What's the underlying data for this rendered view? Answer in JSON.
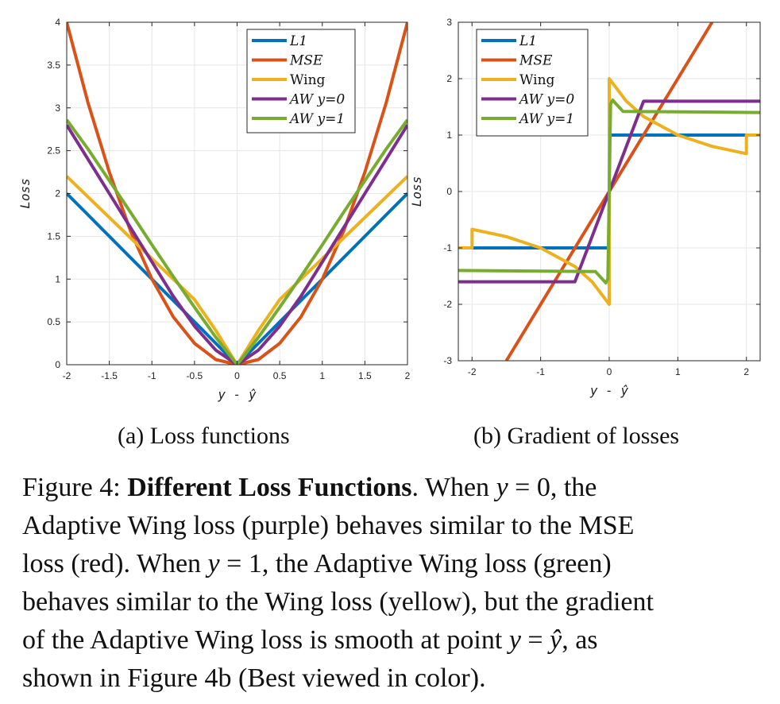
{
  "colors": {
    "L1": "#0072BD",
    "MSE": "#D95319",
    "Wing": "#EDB120",
    "AW0": "#7E2F8E",
    "AW1": "#77AC30",
    "grid": "#e6e6e6",
    "axis": "#262626"
  },
  "chart_data": [
    {
      "type": "line",
      "subtitle": "(a) Loss functions",
      "xlabel": "y - ŷ",
      "ylabel": "Loss",
      "xlim": [
        -2,
        2
      ],
      "ylim": [
        0,
        4
      ],
      "xticks": [
        -2,
        -1.5,
        -1,
        -0.5,
        0,
        0.5,
        1,
        1.5,
        2
      ],
      "xtick_labels": [
        "-2",
        "-1.5",
        "-1",
        "-0.5",
        "0",
        "0.5",
        "1",
        "1.5",
        "2"
      ],
      "yticks": [
        0,
        0.5,
        1,
        1.5,
        2,
        2.5,
        3,
        3.5,
        4
      ],
      "ytick_labels": [
        "0",
        "0.5",
        "1",
        "1.5",
        "2",
        "2.5",
        "3",
        "3.5",
        "4"
      ],
      "grid": true,
      "legend_position": "top-right",
      "x": [
        -2,
        -1.75,
        -1.5,
        -1.25,
        -1,
        -0.75,
        -0.5,
        -0.25,
        0,
        0.25,
        0.5,
        0.75,
        1,
        1.25,
        1.5,
        1.75,
        2
      ],
      "series": [
        {
          "name": "L1",
          "color_key": "L1",
          "values": [
            2,
            1.75,
            1.5,
            1.25,
            1,
            0.75,
            0.5,
            0.25,
            0,
            0.25,
            0.5,
            0.75,
            1,
            1.25,
            1.5,
            1.75,
            2
          ]
        },
        {
          "name": "MSE",
          "color_key": "MSE",
          "values": [
            4,
            3.06,
            2.25,
            1.56,
            1,
            0.56,
            0.25,
            0.06,
            0,
            0.06,
            0.25,
            0.56,
            1,
            1.56,
            2.25,
            3.06,
            4
          ]
        },
        {
          "name": "Wing",
          "color_key": "Wing",
          "values": [
            2.2,
            1.96,
            1.72,
            1.48,
            1.24,
            1.0,
            0.76,
            0.4,
            0,
            0.4,
            0.76,
            1.0,
            1.24,
            1.48,
            1.72,
            1.96,
            2.2
          ]
        },
        {
          "name": "AW y=0",
          "color_key": "AW0",
          "values": [
            2.8,
            2.4,
            2.0,
            1.6,
            1.2,
            0.8,
            0.45,
            0.17,
            0,
            0.17,
            0.45,
            0.8,
            1.2,
            1.6,
            2.0,
            2.4,
            2.8
          ]
        },
        {
          "name": "AW y=1",
          "color_key": "AW1",
          "values": [
            2.86,
            2.52,
            2.15,
            1.78,
            1.4,
            1.03,
            0.67,
            0.32,
            0,
            0.32,
            0.67,
            1.03,
            1.4,
            1.78,
            2.15,
            2.52,
            2.86
          ]
        }
      ]
    },
    {
      "type": "line",
      "subtitle": "(b) Gradient of losses",
      "xlabel": "y - ŷ",
      "ylabel": "Loss",
      "xlim": [
        -2.2,
        2.2
      ],
      "ylim": [
        -3,
        3
      ],
      "xticks": [
        -2,
        -1,
        0,
        1,
        2
      ],
      "xtick_labels": [
        "-2",
        "-1",
        "0",
        "1",
        "2"
      ],
      "yticks": [
        -3,
        -2,
        -1,
        0,
        1,
        2,
        3
      ],
      "ytick_labels": [
        "-3",
        "-2",
        "-1",
        "0",
        "1",
        "2",
        "3"
      ],
      "grid": true,
      "legend_position": "top-left",
      "series": [
        {
          "name": "L1",
          "color_key": "L1",
          "x": [
            -2.0,
            0.0,
            0.0,
            2.2
          ],
          "values": [
            -1,
            -1,
            1,
            1
          ]
        },
        {
          "name": "MSE",
          "color_key": "MSE",
          "x": [
            -1.5,
            1.5
          ],
          "values": [
            -3,
            3
          ]
        },
        {
          "name": "Wing",
          "color_key": "Wing",
          "x": [
            -2.2,
            -2.0,
            -2.0,
            -1.5,
            -1.0,
            -0.5,
            -0.25,
            0.0,
            0.0,
            0.25,
            0.5,
            1.0,
            1.5,
            2.0,
            2.0,
            2.2
          ],
          "values": [
            -1,
            -1,
            -0.67,
            -0.8,
            -1.0,
            -1.33,
            -1.6,
            -2.0,
            2.0,
            1.6,
            1.33,
            1.0,
            0.8,
            0.67,
            1,
            1
          ]
        },
        {
          "name": "AW y=0",
          "color_key": "AW0",
          "x": [
            -2.2,
            -0.5,
            0.5,
            2.2
          ],
          "values": [
            -1.6,
            -1.6,
            1.6,
            1.6
          ]
        },
        {
          "name": "AW y=1",
          "color_key": "AW1",
          "x": [
            -2.2,
            -0.2,
            -0.05,
            -0.02,
            0.0,
            0.02,
            0.05,
            0.2,
            2.2
          ],
          "values": [
            -1.4,
            -1.42,
            -1.62,
            -1.55,
            0,
            1.55,
            1.62,
            1.42,
            1.4
          ]
        }
      ]
    }
  ],
  "caption": {
    "lines": [
      [
        {
          "t": "Figure 4: "
        },
        {
          "t": "Different Loss Functions",
          "b": true
        },
        {
          "t": ".  When "
        },
        {
          "t": "y",
          "i": true
        },
        {
          "t": " = 0, the"
        }
      ],
      [
        {
          "t": "Adaptive Wing loss (purple) behaves similar to the MSE"
        }
      ],
      [
        {
          "t": "loss (red).  When "
        },
        {
          "t": "y",
          "i": true
        },
        {
          "t": " = 1, the Adaptive Wing loss (green)"
        }
      ],
      [
        {
          "t": "behaves similar to the Wing loss (yellow), but the gradient"
        }
      ],
      [
        {
          "t": "of the Adaptive Wing loss is smooth at point "
        },
        {
          "t": "y",
          "i": true
        },
        {
          "t": " = "
        },
        {
          "t": "ŷ",
          "i": true
        },
        {
          "t": ", as"
        }
      ],
      [
        {
          "t": "shown in Figure 4b (Best viewed in color)."
        }
      ]
    ]
  }
}
